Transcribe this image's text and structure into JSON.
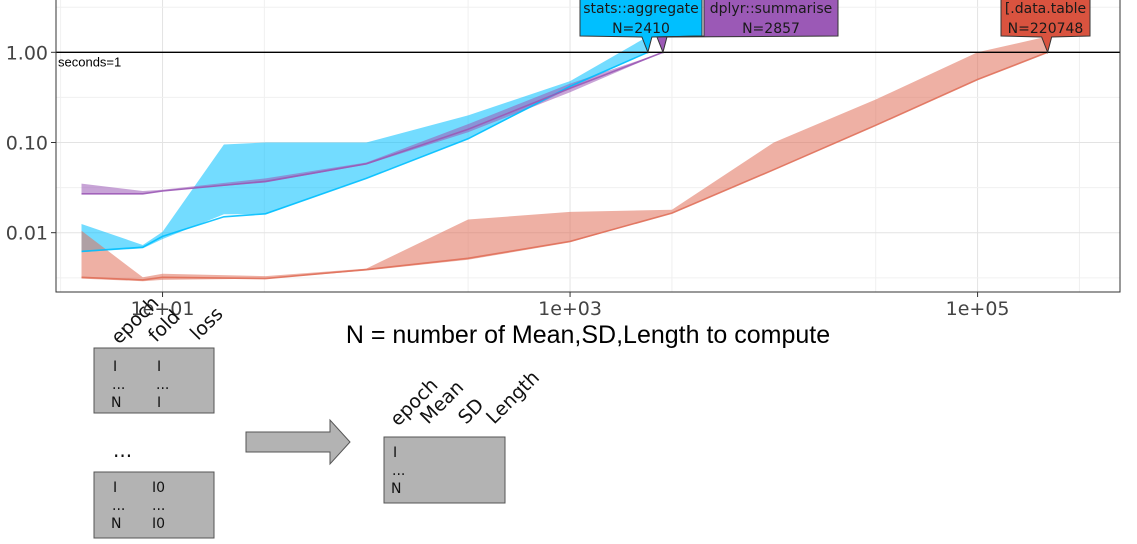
{
  "chart_data": {
    "type": "area",
    "xlabel": "N = number of Mean,SD,Length to compute",
    "ylabel": "",
    "x_scale": "log10",
    "y_scale": "log10",
    "xlim": [
      3,
      500000
    ],
    "ylim": [
      0.0022,
      3.9
    ],
    "grid": true,
    "x_ticks": [
      {
        "value": 10,
        "label": "1e+01"
      },
      {
        "value": 1000,
        "label": "1e+03"
      },
      {
        "value": 100000,
        "label": "1e+05"
      }
    ],
    "y_ticks": [
      {
        "value": 0.01,
        "label": "0.01"
      },
      {
        "value": 0.1,
        "label": "0.10"
      },
      {
        "value": 1,
        "label": "1.00"
      }
    ],
    "reference_line": {
      "y": 1,
      "label": "seconds=1"
    },
    "series": [
      {
        "name": "stats::aggregate",
        "color": "#00BFFF",
        "x": [
          4,
          8,
          10,
          20,
          32,
          100,
          316,
          1000,
          2410
        ],
        "lower": [
          0.0061,
          0.0067,
          0.0085,
          0.016,
          0.016,
          0.04,
          0.11,
          0.4,
          1
        ],
        "upper": [
          0.0125,
          0.0073,
          0.0102,
          0.095,
          0.1,
          0.1,
          0.2,
          0.48,
          1.5
        ],
        "median": [
          0.0062,
          0.0069,
          0.0091,
          0.015,
          0.0162,
          0.04,
          0.11,
          0.42,
          1
        ]
      },
      {
        "name": "dplyr::summarise",
        "color": "#9B59B6",
        "x": [
          4,
          8,
          10,
          32,
          100,
          316,
          1000,
          2857
        ],
        "lower": [
          0.027,
          0.027,
          0.029,
          0.036,
          0.057,
          0.13,
          0.36,
          1
        ],
        "upper": [
          0.035,
          0.029,
          0.03,
          0.04,
          0.06,
          0.16,
          0.45,
          1
        ],
        "median": [
          0.027,
          0.027,
          0.029,
          0.037,
          0.058,
          0.14,
          0.4,
          1
        ]
      },
      {
        "name": "[.data.table",
        "color": "#E0705A",
        "x": [
          4,
          8,
          10,
          32,
          100,
          316,
          1000,
          3162,
          10000,
          31623,
          100000,
          220748
        ],
        "lower": [
          0.0031,
          0.0029,
          0.003,
          0.0031,
          0.0038,
          0.005,
          0.0078,
          0.0165,
          0.05,
          0.155,
          0.5,
          1
        ],
        "upper": [
          0.0105,
          0.0032,
          0.0035,
          0.0033,
          0.004,
          0.014,
          0.017,
          0.018,
          0.1,
          0.3,
          1,
          1.5
        ],
        "median": [
          0.0032,
          0.003,
          0.0032,
          0.0031,
          0.0039,
          0.0052,
          0.008,
          0.0165,
          0.05,
          0.155,
          0.5,
          1
        ]
      }
    ],
    "callouts": [
      {
        "series": "stats::aggregate",
        "lines": [
          "stats::aggregate",
          "N=2410"
        ],
        "fill": "#00BFFF",
        "x": 2410,
        "y": 1
      },
      {
        "series": "dplyr::summarise",
        "lines": [
          "dplyr::summarise",
          "N=2857"
        ],
        "fill": "#9B59B6",
        "x": 2857,
        "y": 1
      },
      {
        "series": "[.data.table",
        "lines": [
          "[.data.table",
          "N=220748"
        ],
        "fill": "#D9533F",
        "x": 220748,
        "y": 1
      }
    ]
  },
  "diagram": {
    "input_headers": [
      "epoch",
      "fold",
      "loss"
    ],
    "input_table_1": {
      "col1": [
        "I",
        "...",
        "N"
      ],
      "col2": [
        "I",
        "...",
        "I"
      ]
    },
    "between_ellipsis": "...",
    "input_table_2": {
      "col1": [
        "I",
        "...",
        "N"
      ],
      "col2": [
        "I0",
        "...",
        "I0"
      ]
    },
    "output_headers": [
      "epoch",
      "Mean",
      "SD",
      "Length"
    ],
    "output_table": {
      "col1": [
        "I",
        "...",
        "N"
      ]
    }
  }
}
